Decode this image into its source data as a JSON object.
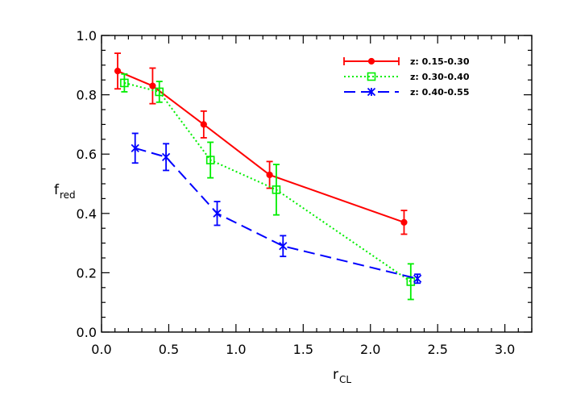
{
  "chart_data": {
    "type": "line",
    "title": "",
    "xlabel": {
      "main": "r",
      "sub": "CL"
    },
    "ylabel": {
      "main": "f",
      "sub": "red"
    },
    "xlim": [
      0.0,
      3.2
    ],
    "ylim": [
      0.0,
      1.0
    ],
    "xticks": [
      "0.0",
      "0.5",
      "1.0",
      "1.5",
      "2.0",
      "2.5",
      "3.0"
    ],
    "yticks": [
      "0.0",
      "0.2",
      "0.4",
      "0.6",
      "0.8",
      "1.0"
    ],
    "grid": false,
    "legend_position": "top-right",
    "series": [
      {
        "name": "z: 0.15-0.30",
        "color": "#ff0000",
        "line_style": "solid",
        "marker": "filled-circle",
        "points": [
          {
            "x": 0.12,
            "y": 0.88,
            "err": 0.06
          },
          {
            "x": 0.38,
            "y": 0.83,
            "err": 0.06
          },
          {
            "x": 0.76,
            "y": 0.7,
            "err": 0.045
          },
          {
            "x": 1.25,
            "y": 0.53,
            "err": 0.045
          },
          {
            "x": 2.25,
            "y": 0.37,
            "err": 0.04
          }
        ]
      },
      {
        "name": "z: 0.30-0.40",
        "color": "#00ee00",
        "line_style": "dotted",
        "marker": "open-square",
        "points": [
          {
            "x": 0.17,
            "y": 0.84,
            "err": 0.03
          },
          {
            "x": 0.43,
            "y": 0.81,
            "err": 0.035
          },
          {
            "x": 0.81,
            "y": 0.58,
            "err": 0.06
          },
          {
            "x": 1.3,
            "y": 0.48,
            "err": 0.085
          },
          {
            "x": 2.3,
            "y": 0.17,
            "err": 0.06
          }
        ]
      },
      {
        "name": "z: 0.40-0.55",
        "color": "#0000ff",
        "line_style": "dashed",
        "marker": "asterisk",
        "points": [
          {
            "x": 0.25,
            "y": 0.62,
            "err": 0.05
          },
          {
            "x": 0.48,
            "y": 0.59,
            "err": 0.045
          },
          {
            "x": 0.86,
            "y": 0.4,
            "err": 0.04
          },
          {
            "x": 1.35,
            "y": 0.29,
            "err": 0.035
          },
          {
            "x": 2.35,
            "y": 0.18,
            "err": 0.015
          }
        ]
      }
    ]
  }
}
